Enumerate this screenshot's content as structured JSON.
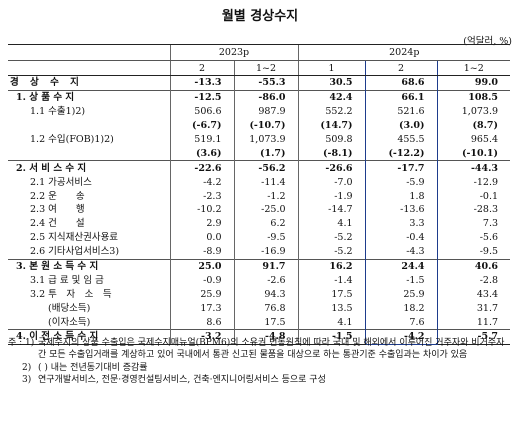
{
  "title": "월별 경상수지",
  "unit": "(억달러, %)",
  "header": {
    "year_2023": "2023p",
    "year_2024": "2024p",
    "cols": [
      "2",
      "1~2",
      "1",
      "2",
      "1~2"
    ]
  },
  "rows": [
    {
      "label": "경 상 수 지",
      "v": [
        "-13.3",
        "-55.3",
        "30.5",
        "68.6",
        "99.0"
      ]
    },
    {
      "label": "1. 상 품 수 지",
      "v": [
        "-12.5",
        "-86.0",
        "42.4",
        "66.1",
        "108.5"
      ]
    },
    {
      "label": "1.1 수출1)2)",
      "v": [
        "506.6",
        "987.9",
        "552.2",
        "521.6",
        "1,073.9"
      ]
    },
    {
      "label": "",
      "v": [
        "(-6.7)",
        "(-10.7)",
        "(14.7)",
        "(3.0)",
        "(8.7)"
      ]
    },
    {
      "label": "1.2 수입(FOB)1)2)",
      "v": [
        "519.1",
        "1,073.9",
        "509.8",
        "455.5",
        "965.4"
      ]
    },
    {
      "label": "",
      "v": [
        "(3.6)",
        "(1.7)",
        "(-8.1)",
        "(-12.2)",
        "(-10.1)"
      ]
    },
    {
      "label": "2. 서 비 스 수 지",
      "v": [
        "-22.6",
        "-56.2",
        "-26.6",
        "-17.7",
        "-44.3"
      ]
    },
    {
      "label": "2.1 가공서비스",
      "v": [
        "-4.2",
        "-11.4",
        "-7.0",
        "-5.9",
        "-12.9"
      ]
    },
    {
      "label": "2.2 운　　송",
      "v": [
        "-2.3",
        "-1.2",
        "-1.9",
        "1.8",
        "-0.1"
      ]
    },
    {
      "label": "2.3 여　　행",
      "v": [
        "-10.2",
        "-25.0",
        "-14.7",
        "-13.6",
        "-28.3"
      ]
    },
    {
      "label": "2.4 건　　설",
      "v": [
        "2.9",
        "6.2",
        "4.1",
        "3.3",
        "7.3"
      ]
    },
    {
      "label": "2.5 지식재산권사용료",
      "v": [
        "0.0",
        "-9.5",
        "-5.2",
        "-0.4",
        "-5.6"
      ]
    },
    {
      "label": "2.6 기타사업서비스3)",
      "v": [
        "-8.9",
        "-16.9",
        "-5.2",
        "-4.3",
        "-9.5"
      ]
    },
    {
      "label": "3. 본 원 소 득 수 지",
      "v": [
        "25.0",
        "91.7",
        "16.2",
        "24.4",
        "40.6"
      ]
    },
    {
      "label": "3.1 급 료 및 임 금",
      "v": [
        "-0.9",
        "-2.6",
        "-1.4",
        "-1.5",
        "-2.8"
      ]
    },
    {
      "label": "3.2 투　자　소　득",
      "v": [
        "25.9",
        "94.3",
        "17.5",
        "25.9",
        "43.4"
      ]
    },
    {
      "label": "(배당소득)",
      "v": [
        "17.3",
        "76.8",
        "13.5",
        "18.2",
        "31.7"
      ]
    },
    {
      "label": "(이자소득)",
      "v": [
        "8.6",
        "17.5",
        "4.1",
        "7.6",
        "11.7"
      ]
    },
    {
      "label": "4. 이 전 소 득 수 지",
      "v": [
        "-3.2",
        "-4.8",
        "-1.5",
        "-4.2",
        "-5.7"
      ]
    }
  ],
  "notes": [
    {
      "mark": "주 : 1)",
      "text": "국제수지의 상품 수출입은 국제수지매뉴얼(BPM6)의 소유권 변동원칙에 따라 국내 및 해외에서 이루어진 거주자와 비거주자 간 모든 수출입거래를 계상하고 있어 국내에서 통관 신고된 물품을 대상으로 하는 통관기준 수출입과는 차이가 있음"
    },
    {
      "mark": "2)",
      "text": "( ) 내는 전년동기대비 증감률"
    },
    {
      "mark": "3)",
      "text": "연구개발서비스, 전문·경영컨설팅서비스, 건축·엔지니어링서비스 등으로 구성"
    }
  ]
}
